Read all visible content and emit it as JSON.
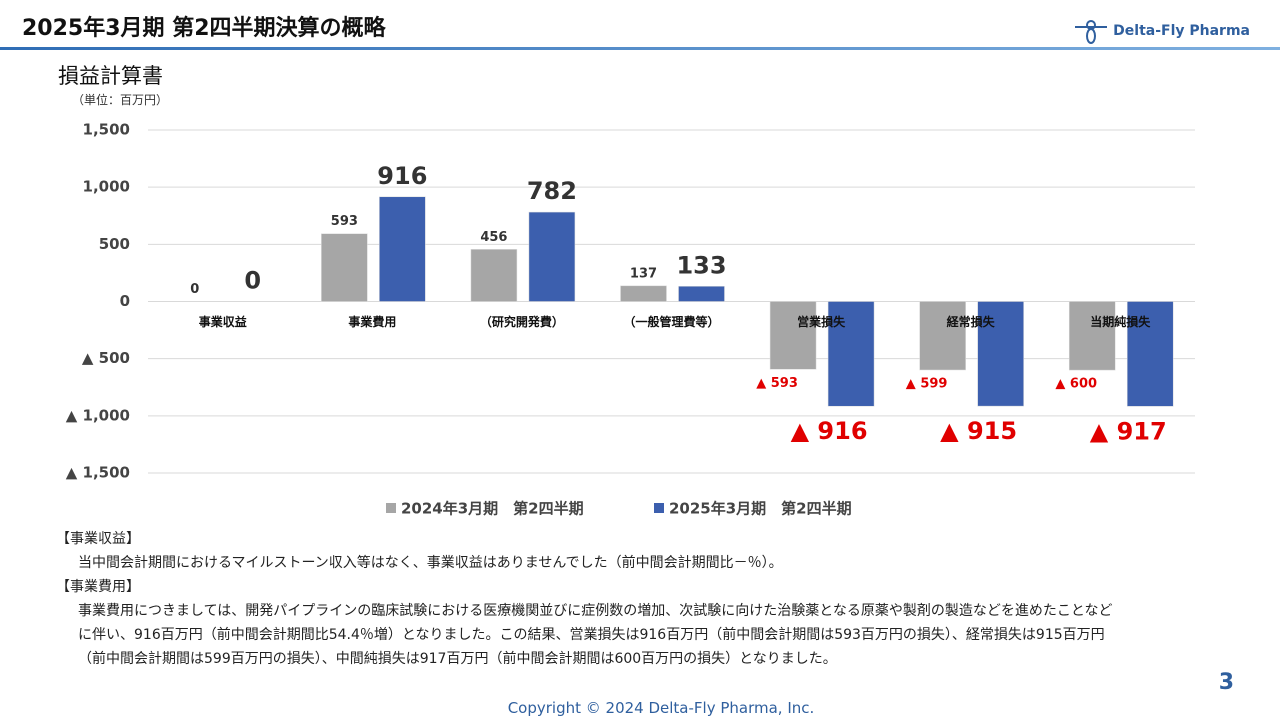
{
  "header": {
    "title": "2025年3月期 第2四半期決算の概略",
    "logo": "Delta-Fly Pharma"
  },
  "chart_data": {
    "type": "bar",
    "title": "損益計算書",
    "unit": "（単位：百万円）",
    "categories": [
      "事業収益",
      "事業費用",
      "（研究開発費）",
      "（一般管理費等）",
      "営業損失",
      "経常損失",
      "当期純損失"
    ],
    "series": [
      {
        "name": "2024年3月期　第2四半期",
        "color": "#a6a6a6",
        "values": [
          0,
          593,
          456,
          137,
          -593,
          -599,
          -600
        ],
        "value_labels": [
          "0",
          "593",
          "456",
          "137",
          "▲ 593",
          "▲ 599",
          "▲ 600"
        ]
      },
      {
        "name": "2025年3月期　第2四半期",
        "color": "#3c5fae",
        "values": [
          0,
          916,
          782,
          133,
          -916,
          -915,
          -917
        ],
        "value_labels": [
          "0",
          "916",
          "782",
          "133",
          "▲ 916",
          "▲ 915",
          "▲ 917"
        ]
      }
    ],
    "ylim": [
      -1500,
      1500
    ],
    "yticks": [
      {
        "value": 1500,
        "label": "1,500"
      },
      {
        "value": 1000,
        "label": "1,000"
      },
      500,
      0,
      {
        "value": -500,
        "label": "▲ 500"
      },
      {
        "value": -1000,
        "label": "▲ 1,000"
      },
      {
        "value": -1500,
        "label": "▲ 1,500"
      }
    ],
    "grid": true
  },
  "notes": [
    {
      "heading": "【事業収益】",
      "lines": [
        "当中間会計期間におけるマイルストーン収入等はなく、事業収益はありませんでした（前中間会計期間比－％）。"
      ]
    },
    {
      "heading": "【事業費用】",
      "lines": [
        "事業費用につきましては、開発パイプラインの臨床試験における医療機関並びに症例数の増加、次試験に向けた治験薬となる原薬や製剤の製造などを進めたことなど",
        "に伴い、916百万円（前中間会計期間比54.4％増）となりました。この結果、営業損失は916百万円（前中間会計期間は593百万円の損失）、経常損失は915百万円",
        "（前中間会計期間は599百万円の損失）、中間純損失は917百万円（前中間会計期間は600百万円の損失）となりました。"
      ]
    }
  ],
  "footer": {
    "copyright": "Copyright © 2024   Delta-Fly Pharma, Inc.",
    "page": "3"
  }
}
